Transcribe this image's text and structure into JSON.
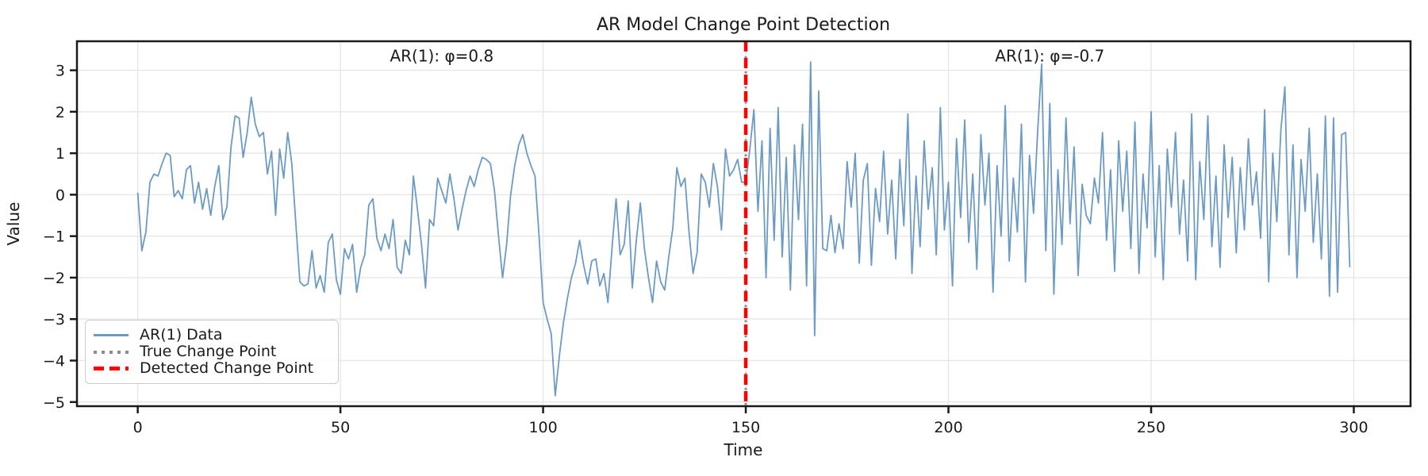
{
  "figure": {
    "title": "AR Model Change Point Detection",
    "xlabel": "Time",
    "ylabel": "Value"
  },
  "chart_data": {
    "type": "line",
    "title": "AR Model Change Point Detection",
    "xlabel": "Time",
    "ylabel": "Value",
    "grid": true,
    "legend_position": "lower left",
    "xlim": [
      -15,
      314
    ],
    "ylim": [
      -5.1,
      3.7
    ],
    "xticks": {
      "values": [
        0,
        50,
        100,
        150,
        200,
        250,
        300
      ],
      "labels": [
        "0",
        "50",
        "100",
        "150",
        "200",
        "250",
        "300"
      ]
    },
    "yticks": {
      "values": [
        3,
        2,
        1,
        0,
        -1,
        -2,
        -3,
        -4,
        -5
      ],
      "labels": [
        "3",
        "2",
        "1",
        "0",
        "−1",
        "−2",
        "−3",
        "−4",
        "−5"
      ]
    },
    "colors": {
      "data_line": "#6b9bc3",
      "true_cp": "#8c8c8c",
      "detected_cp": "#ff0000",
      "grid": "#e7e7e7",
      "spine": "#1a1a1a"
    },
    "change_point": {
      "true_x": 150,
      "detected_x": 150
    },
    "segments": [
      {
        "label": "AR(1): φ=0.8",
        "range": [
          0,
          150
        ]
      },
      {
        "label": "AR(1): φ=-0.7",
        "range": [
          150,
          300
        ]
      }
    ],
    "annotations": [
      {
        "text": "AR(1): φ=0.8",
        "x": 75,
        "y": 3.35
      },
      {
        "text": "AR(1): φ=-0.7",
        "x": 225,
        "y": 3.35
      }
    ],
    "series": [
      {
        "name": "AR(1) Data",
        "style": "solid",
        "color": "#6b9bc3",
        "x_start": 0,
        "x_step": 1,
        "values": [
          0.05,
          -1.35,
          -0.9,
          0.3,
          0.5,
          0.45,
          0.75,
          1.0,
          0.95,
          -0.05,
          0.1,
          -0.1,
          0.6,
          0.7,
          -0.2,
          0.3,
          -0.35,
          0.15,
          -0.5,
          0.2,
          0.7,
          -0.6,
          -0.3,
          1.15,
          1.9,
          1.85,
          0.9,
          1.5,
          2.35,
          1.7,
          1.4,
          1.5,
          0.5,
          1.05,
          -0.5,
          1.1,
          0.4,
          1.5,
          0.75,
          -0.7,
          -2.1,
          -2.2,
          -2.15,
          -1.35,
          -2.25,
          -1.95,
          -2.35,
          -1.15,
          -0.95,
          -2.05,
          -2.4,
          -1.3,
          -1.55,
          -1.2,
          -2.35,
          -1.75,
          -1.45,
          -0.25,
          -0.1,
          -1.05,
          -1.35,
          -0.95,
          -1.3,
          -0.6,
          -1.75,
          -1.9,
          -1.1,
          -1.45,
          0.45,
          -0.35,
          -1.2,
          -2.25,
          -0.6,
          -0.75,
          0.4,
          0.1,
          -0.2,
          0.5,
          -0.1,
          -0.85,
          -0.35,
          0.1,
          0.45,
          0.2,
          0.6,
          0.9,
          0.85,
          0.75,
          0.1,
          -1.0,
          -2.0,
          -1.2,
          0.0,
          0.7,
          1.2,
          1.45,
          1.0,
          0.7,
          0.45,
          -1.0,
          -2.6,
          -3.0,
          -3.35,
          -4.85,
          -3.9,
          -3.1,
          -2.5,
          -2.0,
          -1.65,
          -1.1,
          -1.7,
          -2.15,
          -1.6,
          -1.55,
          -2.2,
          -1.9,
          -2.6,
          -1.3,
          -0.1,
          -1.45,
          -1.2,
          -0.15,
          -2.25,
          -1.1,
          -0.2,
          -1.3,
          -2.0,
          -2.6,
          -1.6,
          -2.1,
          -2.3,
          -1.5,
          -0.8,
          0.65,
          0.2,
          0.4,
          -0.9,
          -1.9,
          -1.4,
          0.5,
          0.3,
          -0.3,
          0.75,
          0.2,
          -0.85,
          1.1,
          0.45,
          0.6,
          0.85,
          0.3,
          0.3,
          1.1,
          2.05,
          -0.4,
          1.3,
          -2.0,
          1.6,
          -1.1,
          2.1,
          -1.5,
          0.9,
          -2.3,
          1.2,
          -0.6,
          1.7,
          -2.2,
          3.2,
          -3.4,
          2.5,
          -1.3,
          -1.35,
          -0.5,
          -1.4,
          -0.7,
          -1.3,
          0.8,
          -0.3,
          1.0,
          -1.65,
          0.35,
          0.75,
          -1.7,
          0.15,
          -0.65,
          1.05,
          -0.95,
          0.35,
          -1.55,
          0.85,
          -0.75,
          1.95,
          -1.9,
          0.45,
          -1.25,
          1.3,
          -0.35,
          0.65,
          -1.45,
          2.1,
          -0.85,
          0.3,
          -2.2,
          1.35,
          -0.55,
          1.8,
          -1.15,
          0.5,
          -1.8,
          1.45,
          -0.25,
          1.0,
          -2.35,
          0.7,
          -1.0,
          2.15,
          -1.6,
          0.4,
          -0.9,
          1.7,
          -2.1,
          0.95,
          -0.45,
          1.5,
          3.15,
          -1.35,
          2.2,
          -2.4,
          0.6,
          -1.2,
          1.85,
          -0.7,
          1.15,
          -1.95,
          0.25,
          -0.5,
          -0.7,
          0.4,
          -0.2,
          1.5,
          -1.1,
          0.6,
          -1.85,
          1.3,
          -0.4,
          1.05,
          -1.3,
          1.75,
          -1.9,
          0.5,
          -0.8,
          2.0,
          -1.5,
          0.7,
          -2.05,
          1.1,
          -0.3,
          1.5,
          -0.95,
          0.35,
          -1.6,
          1.95,
          -2.05,
          0.8,
          -0.6,
          1.9,
          -1.25,
          0.45,
          -1.75,
          1.2,
          -0.55,
          0.9,
          -1.4,
          0.65,
          -0.85,
          1.35,
          -0.25,
          0.55,
          -1.05,
          2.05,
          -2.1,
          1.0,
          -0.65,
          1.55,
          2.6,
          -1.45,
          1.2,
          -2.0,
          0.85,
          -0.4,
          1.6,
          -1.15,
          0.5,
          -1.55,
          1.9,
          -2.45,
          1.85,
          -2.35,
          1.45,
          1.5,
          -1.75
        ]
      },
      {
        "name": "True Change Point",
        "style": "dotted",
        "color": "#8c8c8c",
        "orientation": "vertical",
        "x": 150
      },
      {
        "name": "Detected Change Point",
        "style": "dashed",
        "color": "#ff0000",
        "orientation": "vertical",
        "x": 150
      }
    ]
  },
  "legend": {
    "items": [
      {
        "label": "AR(1) Data",
        "style": "solid",
        "color": "#6b9bc3"
      },
      {
        "label": "True Change Point",
        "style": "dotted",
        "color": "#8c8c8c"
      },
      {
        "label": "Detected Change Point",
        "style": "dashed",
        "color": "#ff0000"
      }
    ]
  }
}
